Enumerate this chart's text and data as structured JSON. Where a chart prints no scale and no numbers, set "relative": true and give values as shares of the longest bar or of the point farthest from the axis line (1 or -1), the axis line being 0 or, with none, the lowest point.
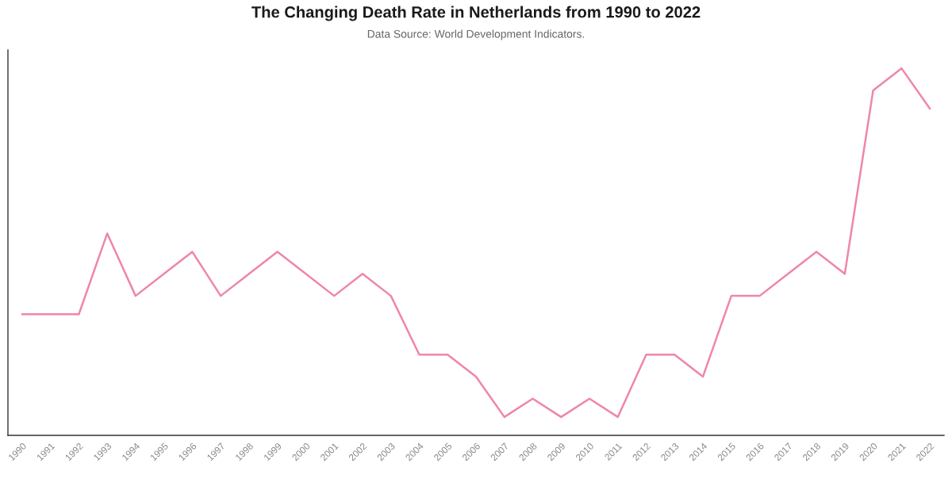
{
  "chart_data": {
    "type": "line",
    "title": "The Changing Death Rate in Netherlands from 1990 to 2022",
    "subtitle": "Data Source: World Development Indicators.",
    "categories": [
      "1990",
      "1991",
      "1992",
      "1993",
      "1994",
      "1995",
      "1996",
      "1997",
      "1998",
      "1999",
      "2000",
      "2001",
      "2002",
      "2003",
      "2004",
      "2005",
      "2006",
      "2007",
      "2008",
      "2009",
      "2010",
      "2011",
      "2012",
      "2013",
      "2014",
      "2015",
      "2016",
      "2017",
      "2018",
      "2019",
      "2020",
      "2021",
      "2022"
    ],
    "relative": true,
    "series": [
      {
        "color": "#ef85ad",
        "values": [
          0.33,
          0.33,
          0.33,
          0.55,
          0.38,
          0.44,
          0.5,
          0.38,
          0.44,
          0.5,
          0.44,
          0.38,
          0.44,
          0.38,
          0.22,
          0.22,
          0.16,
          0.05,
          0.1,
          0.05,
          0.1,
          0.05,
          0.22,
          0.22,
          0.16,
          0.38,
          0.38,
          0.44,
          0.5,
          0.44,
          0.94,
          1,
          0.89
        ]
      }
    ],
    "grid": false,
    "marker": "none",
    "line_style": "solid"
  }
}
